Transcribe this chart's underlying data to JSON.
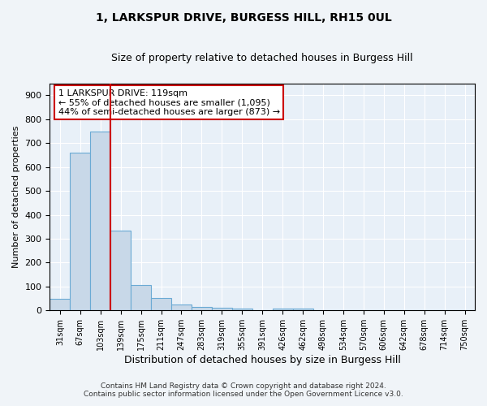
{
  "title": "1, LARKSPUR DRIVE, BURGESS HILL, RH15 0UL",
  "subtitle": "Size of property relative to detached houses in Burgess Hill",
  "xlabel": "Distribution of detached houses by size in Burgess Hill",
  "ylabel": "Number of detached properties",
  "bar_color": "#c8d8e8",
  "bar_edge_color": "#6aaad4",
  "bg_color": "#e8f0f8",
  "fig_bg_color": "#f0f4f8",
  "grid_color": "#ffffff",
  "categories": [
    "31sqm",
    "67sqm",
    "103sqm",
    "139sqm",
    "175sqm",
    "211sqm",
    "247sqm",
    "283sqm",
    "319sqm",
    "355sqm",
    "391sqm",
    "426sqm",
    "462sqm",
    "498sqm",
    "534sqm",
    "570sqm",
    "606sqm",
    "642sqm",
    "678sqm",
    "714sqm",
    "750sqm"
  ],
  "values": [
    50,
    660,
    750,
    335,
    107,
    52,
    25,
    15,
    11,
    9,
    0,
    9,
    9,
    0,
    0,
    0,
    0,
    0,
    0,
    0,
    0
  ],
  "red_line_x": 2.5,
  "annotation_text": "1 LARKSPUR DRIVE: 119sqm\n← 55% of detached houses are smaller (1,095)\n44% of semi-detached houses are larger (873) →",
  "red_line_color": "#cc0000",
  "ylim": [
    0,
    950
  ],
  "yticks": [
    0,
    100,
    200,
    300,
    400,
    500,
    600,
    700,
    800,
    900
  ],
  "footnote1": "Contains HM Land Registry data © Crown copyright and database right 2024.",
  "footnote2": "Contains public sector information licensed under the Open Government Licence v3.0."
}
